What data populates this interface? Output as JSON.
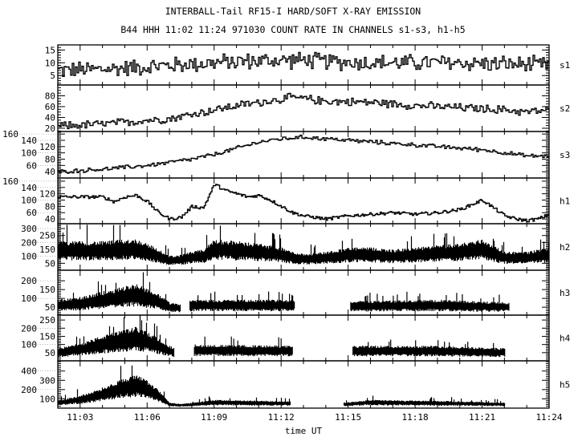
{
  "chart_data": {
    "type": "line",
    "title": "INTERBALL-Tail RF15-I HARD/SOFT X-RAY EMISSION",
    "subtitle": "B44 HHH 11:02 11:24 971030  COUNT RATE IN CHANNELS s1-s3, h1-h5",
    "xlabel": "time UT",
    "x_unit": "minutes after 11:00",
    "xlim": [
      2,
      24
    ],
    "x_ticks": [
      {
        "t": 3,
        "label": "11:03"
      },
      {
        "t": 6,
        "label": "11:06"
      },
      {
        "t": 9,
        "label": "11:09"
      },
      {
        "t": 12,
        "label": "11:12"
      },
      {
        "t": 15,
        "label": "11:15"
      },
      {
        "t": 18,
        "label": "11:18"
      },
      {
        "t": 21,
        "label": "11:21"
      },
      {
        "t": 24,
        "label": "11:24"
      }
    ],
    "grid": false,
    "panels": [
      {
        "name": "s1",
        "style": "step",
        "ylim": [
          1.3,
          17
        ],
        "yticks": [
          5,
          10,
          15
        ],
        "minor": 1,
        "noise": 3,
        "segments": [
          [
            2,
            24
          ]
        ],
        "knots": [
          [
            2,
            7
          ],
          [
            4,
            7.5
          ],
          [
            6,
            8.5
          ],
          [
            8,
            9.5
          ],
          [
            10,
            10.5
          ],
          [
            12,
            11
          ],
          [
            13,
            11
          ],
          [
            14,
            10.5
          ],
          [
            16,
            10
          ],
          [
            20,
            10
          ],
          [
            22,
            9.5
          ],
          [
            24,
            9
          ]
        ]
      },
      {
        "name": "s2",
        "style": "step",
        "ylim": [
          14,
          100
        ],
        "yticks": [
          20,
          40,
          60,
          80
        ],
        "minor": 5,
        "noise": 7,
        "segments": [
          [
            2,
            24
          ]
        ],
        "knots": [
          [
            2,
            24
          ],
          [
            4,
            28
          ],
          [
            5,
            31
          ],
          [
            6,
            35
          ],
          [
            7,
            38
          ],
          [
            8,
            46
          ],
          [
            9,
            54
          ],
          [
            10,
            62
          ],
          [
            11,
            68
          ],
          [
            12,
            74
          ],
          [
            12.5,
            77
          ],
          [
            14,
            70
          ],
          [
            16,
            68
          ],
          [
            18,
            62
          ],
          [
            20,
            58
          ],
          [
            22,
            54
          ],
          [
            23,
            50
          ],
          [
            24,
            54
          ]
        ]
      },
      {
        "name": "s3",
        "style": "step",
        "ylim": [
          20,
          168
        ],
        "yticks": [
          40,
          60,
          80,
          100,
          120,
          140,
          160
        ],
        "minor": 5,
        "noise": 6,
        "segments": [
          [
            2,
            24
          ]
        ],
        "knots": [
          [
            2,
            40
          ],
          [
            4,
            48
          ],
          [
            6,
            60
          ],
          [
            7,
            70
          ],
          [
            8,
            80
          ],
          [
            9,
            95
          ],
          [
            10,
            115
          ],
          [
            11,
            135
          ],
          [
            12,
            145
          ],
          [
            13,
            150
          ],
          [
            14,
            145
          ],
          [
            15,
            140
          ],
          [
            16,
            135
          ],
          [
            17,
            130
          ],
          [
            18,
            125
          ],
          [
            19,
            120
          ],
          [
            20,
            115
          ],
          [
            21,
            110
          ],
          [
            22,
            100
          ],
          [
            23,
            90
          ],
          [
            24,
            90
          ]
        ]
      },
      {
        "name": "h1",
        "style": "step",
        "ylim": [
          25,
          170
        ],
        "yticks": [
          40,
          60,
          80,
          100,
          120,
          140,
          160
        ],
        "minor": 5,
        "noise": 5,
        "segments": [
          [
            2,
            24
          ]
        ],
        "knots": [
          [
            2,
            110
          ],
          [
            3,
            110
          ],
          [
            4,
            110
          ],
          [
            4.5,
            95
          ],
          [
            5,
            110
          ],
          [
            5.5,
            115
          ],
          [
            6,
            95
          ],
          [
            6.5,
            60
          ],
          [
            7,
            40
          ],
          [
            7.5,
            45
          ],
          [
            8,
            80
          ],
          [
            8.5,
            75
          ],
          [
            9,
            150
          ],
          [
            9.5,
            130
          ],
          [
            10,
            120
          ],
          [
            10.5,
            110
          ],
          [
            11,
            115
          ],
          [
            11.5,
            100
          ],
          [
            12,
            80
          ],
          [
            12.5,
            60
          ],
          [
            13,
            50
          ],
          [
            14,
            40
          ],
          [
            15,
            50
          ],
          [
            16,
            55
          ],
          [
            17,
            60
          ],
          [
            18,
            55
          ],
          [
            19,
            60
          ],
          [
            20,
            70
          ],
          [
            20.5,
            85
          ],
          [
            21,
            100
          ],
          [
            21.5,
            75
          ],
          [
            22,
            50
          ],
          [
            22.5,
            40
          ],
          [
            23,
            35
          ],
          [
            23.5,
            40
          ],
          [
            24,
            55
          ]
        ]
      },
      {
        "name": "h2",
        "style": "dense",
        "ylim": [
          0,
          335
        ],
        "yticks": [
          50,
          100,
          150,
          200,
          250,
          300
        ],
        "minor": 10,
        "noise": 0.45,
        "segments": [
          [
            2,
            24
          ]
        ],
        "knots": [
          [
            2,
            140
          ],
          [
            3,
            140
          ],
          [
            4,
            140
          ],
          [
            5,
            150
          ],
          [
            5.5,
            150
          ],
          [
            6,
            130
          ],
          [
            6.5,
            100
          ],
          [
            7,
            70
          ],
          [
            7.5,
            75
          ],
          [
            8,
            90
          ],
          [
            8.5,
            100
          ],
          [
            9,
            150
          ],
          [
            10,
            140
          ],
          [
            11,
            130
          ],
          [
            12,
            110
          ],
          [
            12.5,
            90
          ],
          [
            13,
            80
          ],
          [
            14,
            90
          ],
          [
            15,
            110
          ],
          [
            16,
            110
          ],
          [
            17,
            100
          ],
          [
            18,
            110
          ],
          [
            19,
            120
          ],
          [
            20,
            130
          ],
          [
            20.5,
            140
          ],
          [
            21,
            150
          ],
          [
            21.5,
            120
          ],
          [
            22,
            90
          ],
          [
            23,
            90
          ],
          [
            24,
            110
          ]
        ]
      },
      {
        "name": "h3",
        "style": "dense",
        "ylim": [
          5,
          260
        ],
        "yticks": [
          50,
          100,
          150,
          200
        ],
        "minor": 10,
        "noise": 0.5,
        "segments": [
          [
            2,
            7.5
          ],
          [
            7.9,
            12.6
          ],
          [
            15.1,
            22.2
          ]
        ],
        "knots": [
          [
            2,
            60
          ],
          [
            3,
            70
          ],
          [
            4,
            90
          ],
          [
            5,
            110
          ],
          [
            5.5,
            120
          ],
          [
            6,
            100
          ],
          [
            6.5,
            80
          ],
          [
            7,
            50
          ],
          [
            7.5,
            45
          ],
          [
            8,
            60
          ],
          [
            12.6,
            60
          ],
          [
            15,
            55
          ],
          [
            19,
            60
          ],
          [
            22.2,
            50
          ]
        ]
      },
      {
        "name": "h4",
        "style": "dense",
        "ylim": [
          0,
          280
        ],
        "yticks": [
          50,
          100,
          150,
          200,
          250
        ],
        "minor": 10,
        "noise": 0.5,
        "segments": [
          [
            2,
            7.2
          ],
          [
            8.1,
            12.5
          ],
          [
            15.2,
            22.0
          ]
        ],
        "knots": [
          [
            2,
            50
          ],
          [
            3,
            70
          ],
          [
            4,
            100
          ],
          [
            5,
            125
          ],
          [
            5.5,
            135
          ],
          [
            6,
            115
          ],
          [
            6.5,
            90
          ],
          [
            7,
            60
          ],
          [
            7.2,
            50
          ],
          [
            8,
            65
          ],
          [
            12.5,
            60
          ],
          [
            15,
            60
          ],
          [
            19,
            60
          ],
          [
            22,
            50
          ]
        ]
      },
      {
        "name": "h5",
        "style": "dense",
        "ylim": [
          0,
          510
        ],
        "yticks": [
          100,
          200,
          300,
          400
        ],
        "minor": 20,
        "noise": 0.45,
        "segments": [
          [
            2,
            12.4
          ],
          [
            14.8,
            22.0
          ]
        ],
        "knots": [
          [
            2,
            60
          ],
          [
            3,
            90
          ],
          [
            4,
            150
          ],
          [
            5,
            220
          ],
          [
            5.5,
            240
          ],
          [
            6,
            200
          ],
          [
            6.5,
            130
          ],
          [
            7,
            40
          ],
          [
            7.5,
            30
          ],
          [
            8,
            40
          ],
          [
            9,
            60
          ],
          [
            12.4,
            50
          ],
          [
            14.8,
            40
          ],
          [
            16,
            60
          ],
          [
            20,
            50
          ],
          [
            22,
            40
          ]
        ]
      }
    ]
  }
}
